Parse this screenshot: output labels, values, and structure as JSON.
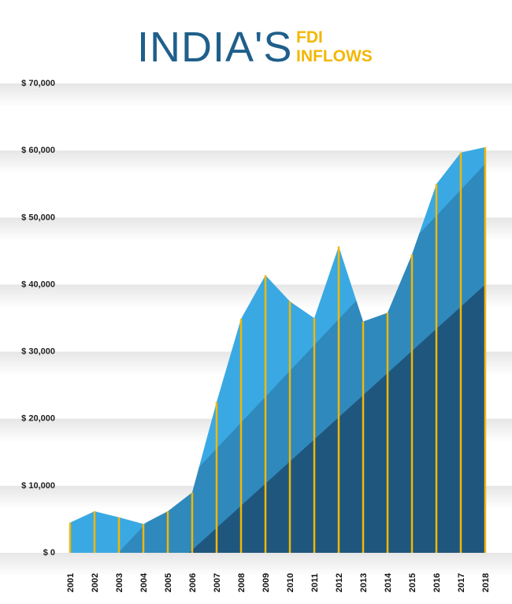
{
  "title": {
    "main": "INDIA'S",
    "sub_line1": "FDI",
    "sub_line2": "INFLOWS"
  },
  "colors": {
    "title_main": "#1f5f8b",
    "title_sub": "#f2b705",
    "area_light": "#3aa9e3",
    "area_dark": "#1d4e73",
    "bar_lines": "#f2b705",
    "band": "#efefef"
  },
  "chart_data": {
    "type": "area",
    "title": "INDIA'S FDI INFLOWS",
    "xlabel": "",
    "ylabel": "",
    "categories": [
      "2001",
      "2002",
      "2003",
      "2004",
      "2005",
      "2006",
      "2007",
      "2008",
      "2009",
      "2010",
      "2011",
      "2012",
      "2013",
      "2014",
      "2015",
      "2016",
      "2017",
      "2018"
    ],
    "values": [
      4500,
      6200,
      5300,
      4300,
      6200,
      9000,
      22500,
      34900,
      41400,
      37500,
      35000,
      45700,
      34500,
      35800,
      44500,
      55000,
      59700,
      60500
    ],
    "ylim": [
      0,
      70000
    ],
    "yticks": [
      0,
      10000,
      20000,
      30000,
      40000,
      50000,
      60000,
      70000
    ],
    "ytick_labels": [
      "$ 0",
      "$ 10,000",
      "$ 20,000",
      "$ 30,000",
      "$ 40,000",
      "$ 50,000",
      "$ 60,000",
      "$ 70,000"
    ],
    "grid": true,
    "legend": "none"
  }
}
